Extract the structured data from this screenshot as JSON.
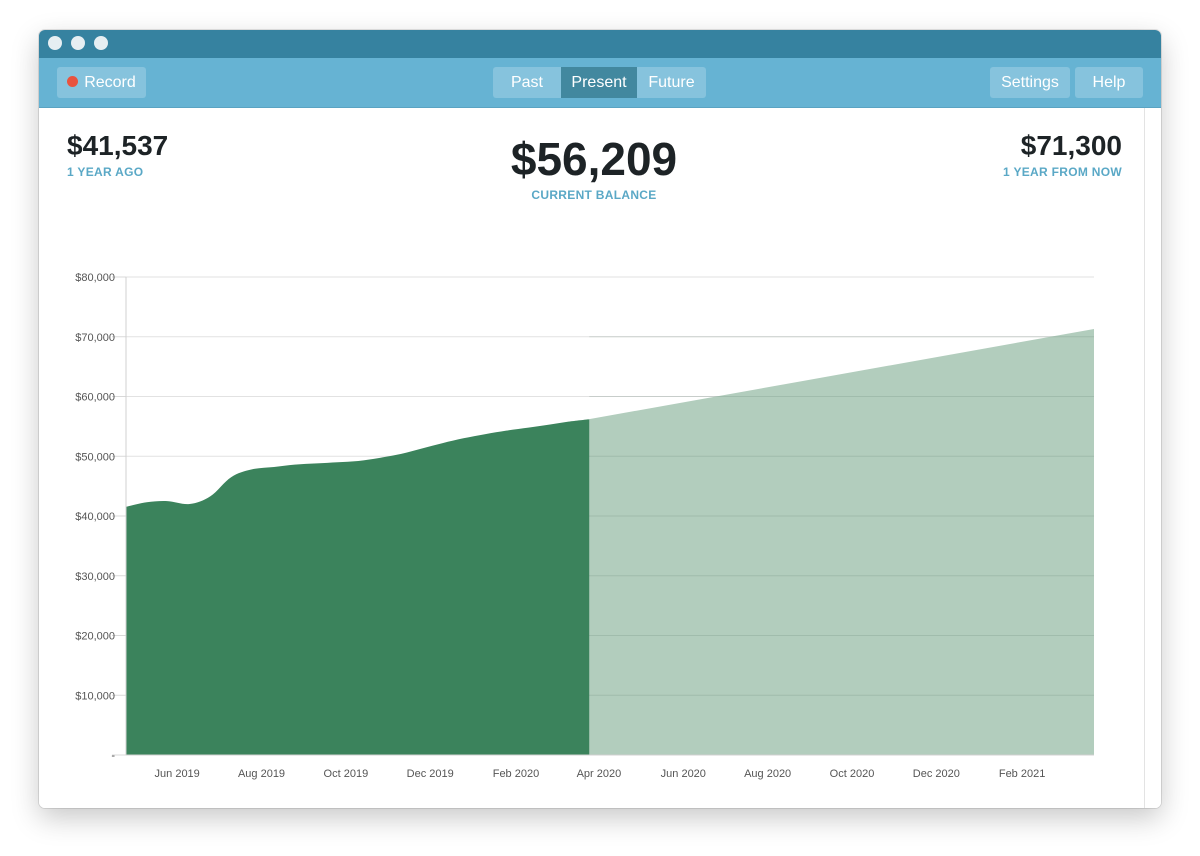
{
  "toolbar": {
    "record_label": "Record",
    "segments": [
      "Past",
      "Present",
      "Future"
    ],
    "active_segment": "Present",
    "settings_label": "Settings",
    "help_label": "Help"
  },
  "stats": {
    "past_value": "$41,537",
    "past_label": "1 YEAR AGO",
    "current_value": "$56,209",
    "current_label": "CURRENT BALANCE",
    "future_value": "$71,300",
    "future_label": "1 YEAR FROM NOW"
  },
  "colors": {
    "titlebar": "#3682a0",
    "toolbar": "#66b3d3",
    "actual_fill": "#3b835c",
    "projected_fill": "#b2cdbd",
    "accent_label": "#5aa8c6",
    "record_dot": "#e8533f"
  },
  "chart_data": {
    "type": "area",
    "title": "",
    "xlabel": "",
    "ylabel": "",
    "ylim": [
      0,
      80000
    ],
    "y_ticks": [
      "$80,000",
      "$70,000",
      "$60,000",
      "$50,000",
      "$40,000",
      "$30,000",
      "$20,000",
      "$10,000",
      "-"
    ],
    "x_ticks": [
      "Jun 2019",
      "Aug 2019",
      "Oct 2019",
      "Dec 2019",
      "Feb 2020",
      "Apr 2020",
      "Jun 2020",
      "Aug 2020",
      "Oct 2020",
      "Dec 2020",
      "Feb 2021"
    ],
    "grid": true,
    "series": [
      {
        "x": [
          "2019-04-25",
          "2019-05-10",
          "2019-05-25",
          "2019-06-10",
          "2019-06-25",
          "2019-07-10",
          "2019-07-25",
          "2019-08-10",
          "2019-08-25",
          "2019-09-10",
          "2019-09-25",
          "2019-10-10",
          "2019-10-25",
          "2019-11-10",
          "2019-11-25",
          "2019-12-10",
          "2019-12-25",
          "2020-01-10",
          "2020-01-25",
          "2020-02-10",
          "2020-02-25",
          "2020-03-10",
          "2020-03-25"
        ],
        "values": [
          41537,
          42300,
          42500,
          42000,
          43300,
          46500,
          47800,
          48200,
          48600,
          48800,
          49000,
          49200,
          49700,
          50400,
          51300,
          52200,
          53000,
          53700,
          54300,
          54800,
          55300,
          55800,
          56209
        ]
      },
      {
        "x": [
          "2020-03-25",
          "2021-03-25"
        ],
        "values": [
          56209,
          71300
        ]
      }
    ]
  }
}
